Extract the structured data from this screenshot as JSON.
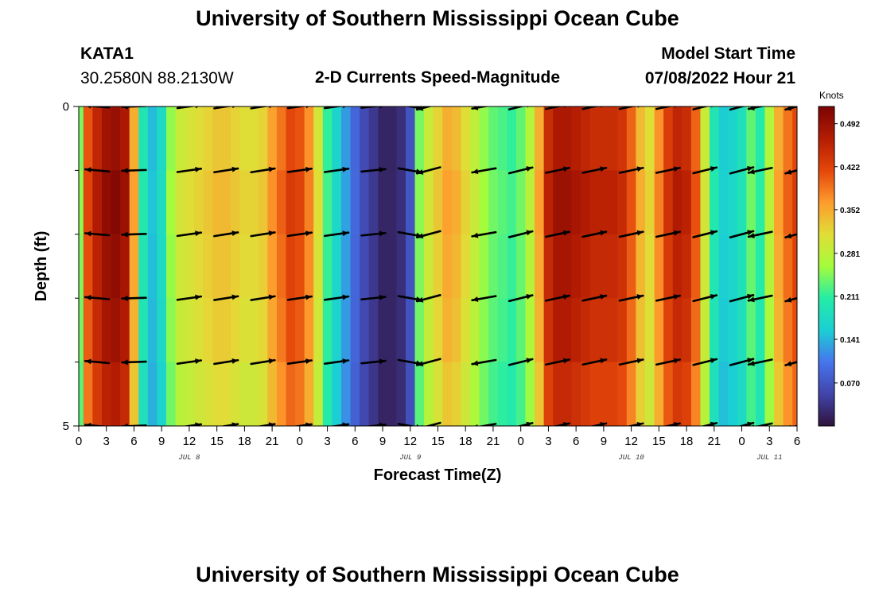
{
  "page": {
    "title": "University of Southern Mississippi Ocean Cube",
    "title_bottom": "University of Southern Mississippi Ocean Cube",
    "station": "KATA1",
    "location": "30.2580N  88.2130W",
    "subtitle": "2-D Currents Speed-Magnitude",
    "model_start_label": "Model Start Time",
    "model_start_value": "07/08/2022 Hour 21"
  },
  "chart_data": {
    "type": "heatmap",
    "title": "2-D Currents Speed-Magnitude",
    "xlabel": "Forecast Time(Z)",
    "ylabel": "Depth (ft)",
    "x_range_hours": [
      0,
      78
    ],
    "y_range_depth": [
      0,
      5
    ],
    "x_ticks": [
      {
        "h": 0,
        "label": "0"
      },
      {
        "h": 3,
        "label": "3"
      },
      {
        "h": 6,
        "label": "6"
      },
      {
        "h": 9,
        "label": "9"
      },
      {
        "h": 12,
        "label": "12"
      },
      {
        "h": 15,
        "label": "15"
      },
      {
        "h": 18,
        "label": "18"
      },
      {
        "h": 21,
        "label": "21"
      },
      {
        "h": 24,
        "label": "0"
      },
      {
        "h": 27,
        "label": "3"
      },
      {
        "h": 30,
        "label": "6"
      },
      {
        "h": 33,
        "label": "9"
      },
      {
        "h": 36,
        "label": "12"
      },
      {
        "h": 39,
        "label": "15"
      },
      {
        "h": 42,
        "label": "18"
      },
      {
        "h": 45,
        "label": "21"
      },
      {
        "h": 48,
        "label": "0"
      },
      {
        "h": 51,
        "label": "3"
      },
      {
        "h": 54,
        "label": "6"
      },
      {
        "h": 57,
        "label": "9"
      },
      {
        "h": 60,
        "label": "12"
      },
      {
        "h": 63,
        "label": "15"
      },
      {
        "h": 66,
        "label": "18"
      },
      {
        "h": 69,
        "label": "21"
      },
      {
        "h": 72,
        "label": "0"
      },
      {
        "h": 75,
        "label": "3"
      },
      {
        "h": 78,
        "label": "6"
      }
    ],
    "date_labels": [
      {
        "h": 12,
        "label": "JUL 8"
      },
      {
        "h": 36,
        "label": "JUL 9"
      },
      {
        "h": 60,
        "label": "JUL 10"
      },
      {
        "h": 75,
        "label": "JUL 11"
      }
    ],
    "y_tick_labels": [
      {
        "d": 0,
        "label": "0"
      },
      {
        "d": 5,
        "label": "5"
      }
    ],
    "y_minor_ticks": [
      1,
      2,
      3,
      4
    ],
    "colorbar": {
      "label": "Knots",
      "min": 0.0,
      "max": 0.52,
      "ticks": [
        "0.492",
        "0.422",
        "0.352",
        "0.281",
        "0.211",
        "0.141",
        "0.070"
      ],
      "tick_values": [
        0.492,
        0.422,
        0.352,
        0.281,
        0.211,
        0.141,
        0.07
      ]
    },
    "speed_profile_hourly": [
      0.25,
      0.42,
      0.47,
      0.5,
      0.51,
      0.49,
      0.36,
      0.2,
      0.15,
      0.18,
      0.26,
      0.3,
      0.31,
      0.32,
      0.33,
      0.34,
      0.34,
      0.33,
      0.32,
      0.32,
      0.33,
      0.37,
      0.4,
      0.43,
      0.42,
      0.38,
      0.31,
      0.22,
      0.17,
      0.13,
      0.09,
      0.06,
      0.04,
      0.02,
      0.02,
      0.03,
      0.07,
      0.25,
      0.3,
      0.33,
      0.36,
      0.35,
      0.32,
      0.29,
      0.26,
      0.24,
      0.23,
      0.22,
      0.24,
      0.28,
      0.36,
      0.46,
      0.49,
      0.49,
      0.48,
      0.47,
      0.46,
      0.46,
      0.46,
      0.45,
      0.41,
      0.35,
      0.32,
      0.38,
      0.44,
      0.47,
      0.46,
      0.41,
      0.3,
      0.2,
      0.16,
      0.17,
      0.19,
      0.24,
      0.21,
      0.28,
      0.36,
      0.4,
      0.43
    ],
    "depth_factors": [
      0.97,
      1.0,
      0.98,
      0.96,
      0.92
    ],
    "arrow_rows_depth": [
      0,
      1,
      2,
      3,
      4,
      5
    ],
    "arrow_columns": [
      {
        "h": 2,
        "dir": 175
      },
      {
        "h": 6,
        "dir": 182
      },
      {
        "h": 12,
        "dir": 8
      },
      {
        "h": 16,
        "dir": 9
      },
      {
        "h": 20,
        "dir": 9
      },
      {
        "h": 24,
        "dir": 8
      },
      {
        "h": 28,
        "dir": 8
      },
      {
        "h": 32,
        "dir": 6
      },
      {
        "h": 36,
        "dir": 350
      },
      {
        "h": 38,
        "dir": 195
      },
      {
        "h": 44,
        "dir": 190
      },
      {
        "h": 48,
        "dir": 14
      },
      {
        "h": 52,
        "dir": 12
      },
      {
        "h": 56,
        "dir": 12
      },
      {
        "h": 60,
        "dir": 12
      },
      {
        "h": 64,
        "dir": 12
      },
      {
        "h": 68,
        "dir": 14
      },
      {
        "h": 72,
        "dir": 15
      },
      {
        "h": 74,
        "dir": 192
      },
      {
        "h": 78,
        "dir": 195
      }
    ]
  },
  "colors": {
    "arrow": "#000000",
    "axis": "#000000"
  }
}
